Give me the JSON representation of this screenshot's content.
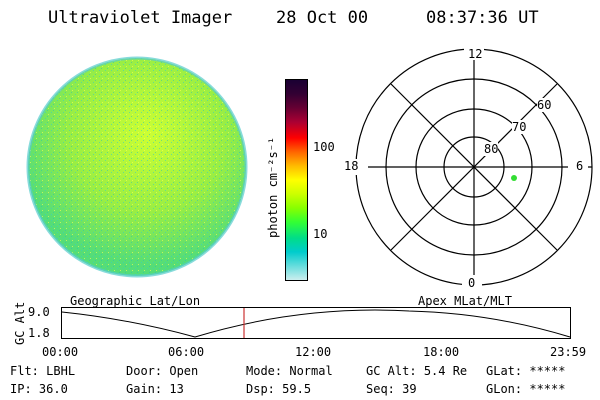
{
  "header": {
    "title": "Ultraviolet Imager",
    "date": "28 Oct 00",
    "time": "08:37:36 UT"
  },
  "colorbar": {
    "unit_label": "photon cm⁻²s⁻¹",
    "tick_100": "100",
    "tick_10": "10",
    "colors": [
      "#1a0033",
      "#330033",
      "#660033",
      "#aa0033",
      "#ff0000",
      "#ff6600",
      "#ffbb00",
      "#ffff00",
      "#ccff00",
      "#88ff00",
      "#33ff33",
      "#00dd88",
      "#00cccc",
      "#66dddd",
      "#cceeee"
    ]
  },
  "polar": {
    "ring_labels": [
      "60",
      "70",
      "80"
    ],
    "mlt_labels": {
      "top": "12",
      "left": "18",
      "right": "6",
      "bottom": "0"
    },
    "point_color": "#33dd33"
  },
  "timeline": {
    "ylabel": "GC Alt",
    "ytick_top": "9.0",
    "ytick_bottom": "1.8",
    "left_label": "Geographic Lat/Lon",
    "right_label": "Apex MLat/MLT",
    "x_ticks": [
      "00:00",
      "06:00",
      "12:00",
      "18:00",
      "23:59"
    ],
    "marker_color": "#cc3333"
  },
  "footer": {
    "row1": [
      {
        "label": "Flt:",
        "value": "LBHL"
      },
      {
        "label": "Door:",
        "value": "Open"
      },
      {
        "label": "Mode:",
        "value": "Normal"
      },
      {
        "label": "GC Alt:",
        "value": "5.4 Re"
      },
      {
        "label": "GLat:",
        "value": "*****"
      }
    ],
    "row2": [
      {
        "label": "IP:",
        "value": "36.0"
      },
      {
        "label": "Gain:",
        "value": "13"
      },
      {
        "label": "Dsp:",
        "value": "59.5"
      },
      {
        "label": "Seq:",
        "value": "39"
      },
      {
        "label": "GLon:",
        "value": "*****"
      }
    ]
  }
}
